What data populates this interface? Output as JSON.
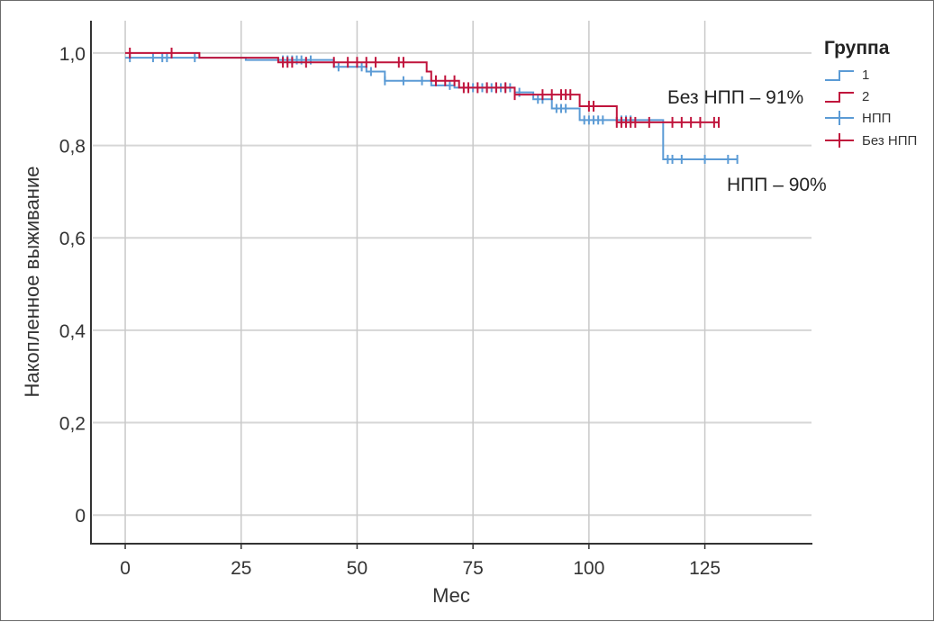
{
  "chart_data": {
    "type": "line",
    "subtype": "kaplan-meier step",
    "xlabel": "Мес",
    "ylabel": "Накопленное выживание",
    "xlim": [
      -7,
      148
    ],
    "ylim": [
      -0.06,
      1.07
    ],
    "x_ticks": [
      {
        "value": 0,
        "label": "0"
      },
      {
        "value": 25,
        "label": "25"
      },
      {
        "value": 50,
        "label": "50"
      },
      {
        "value": 75,
        "label": "75"
      },
      {
        "value": 100,
        "label": "100"
      },
      {
        "value": 125,
        "label": "125"
      }
    ],
    "y_ticks": [
      {
        "value": 0,
        "label": "0"
      },
      {
        "value": 0.2,
        "label": "0,2"
      },
      {
        "value": 0.4,
        "label": "0,4"
      },
      {
        "value": 0.6,
        "label": "0,6"
      },
      {
        "value": 0.8,
        "label": "0,8"
      },
      {
        "value": 1.0,
        "label": "1,0"
      }
    ],
    "grid": true,
    "legend": {
      "title": "Группа",
      "position": "right",
      "entries": [
        {
          "label": "1",
          "kind": "line",
          "color": "#5b9bd5"
        },
        {
          "label": "2",
          "kind": "line",
          "color": "#c0143c"
        },
        {
          "label": "НПП",
          "kind": "censor",
          "color": "#5b9bd5"
        },
        {
          "label": "Без НПП",
          "kind": "censor",
          "color": "#c0143c"
        }
      ]
    },
    "series": [
      {
        "name": "1",
        "color": "#5b9bd5",
        "steps": [
          [
            0,
            0.99
          ],
          [
            16,
            0.99
          ],
          [
            26,
            0.985
          ],
          [
            34,
            0.985
          ],
          [
            45,
            0.97
          ],
          [
            52,
            0.96
          ],
          [
            56,
            0.94
          ],
          [
            66,
            0.93
          ],
          [
            71,
            0.925
          ],
          [
            84,
            0.915
          ],
          [
            88,
            0.9
          ],
          [
            92,
            0.88
          ],
          [
            98,
            0.855
          ],
          [
            116,
            0.77
          ],
          [
            132,
            0.77
          ]
        ],
        "censored": [
          1,
          6,
          8,
          9,
          15,
          34,
          35,
          36,
          37,
          38,
          40,
          46,
          51,
          53,
          56,
          60,
          64,
          70,
          75,
          77,
          78,
          79,
          80,
          81,
          82,
          83,
          85,
          89,
          90,
          93,
          94,
          95,
          99,
          100,
          101,
          102,
          103,
          107,
          108,
          109,
          117,
          118,
          120,
          125,
          130,
          132
        ]
      },
      {
        "name": "2",
        "color": "#c0143c",
        "steps": [
          [
            0,
            1.0
          ],
          [
            10,
            1.0
          ],
          [
            16,
            0.99
          ],
          [
            25,
            0.99
          ],
          [
            33,
            0.98
          ],
          [
            60,
            0.98
          ],
          [
            65,
            0.96
          ],
          [
            66,
            0.94
          ],
          [
            72,
            0.925
          ],
          [
            84,
            0.91
          ],
          [
            98,
            0.885
          ],
          [
            106,
            0.85
          ],
          [
            128,
            0.85
          ]
        ],
        "censored": [
          1,
          10,
          34,
          35,
          36,
          39,
          45,
          48,
          50,
          52,
          54,
          59,
          60,
          67,
          69,
          71,
          73,
          74,
          76,
          78,
          80,
          82,
          84,
          90,
          92,
          94,
          95,
          96,
          100,
          101,
          106,
          107,
          108,
          109,
          110,
          113,
          118,
          120,
          122,
          124,
          127,
          128
        ]
      }
    ],
    "annotations": [
      {
        "text": "Без НПП – 91%",
        "near_series": "2"
      },
      {
        "text": "НПП – 90%",
        "near_series": "1"
      }
    ]
  }
}
